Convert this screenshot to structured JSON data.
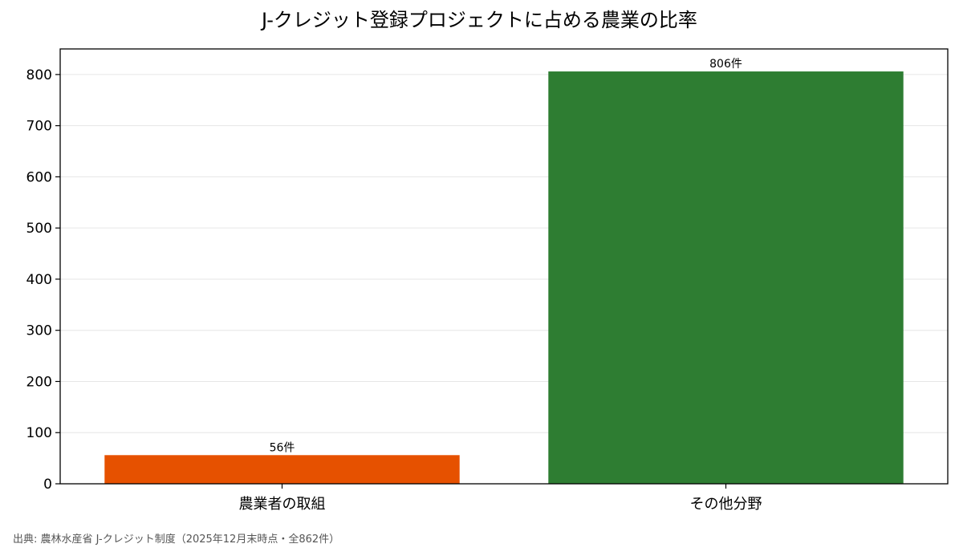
{
  "chart_data": {
    "type": "bar",
    "title": "J-クレジット登録プロジェクトに占める農業の比率",
    "categories": [
      "農業者の取組",
      "その他分野"
    ],
    "values": [
      56,
      806
    ],
    "data_labels": [
      "56件",
      "806件"
    ],
    "colors": [
      "#e65100",
      "#2e7d32"
    ],
    "xlabel": "",
    "ylabel": "",
    "ylim": [
      0,
      850
    ],
    "yticks": [
      0,
      100,
      200,
      300,
      400,
      500,
      600,
      700,
      800
    ],
    "grid": true,
    "legend": "none"
  },
  "source_note": "出典: 農林水産省 J-クレジット制度（2025年12月末時点・全862件）"
}
